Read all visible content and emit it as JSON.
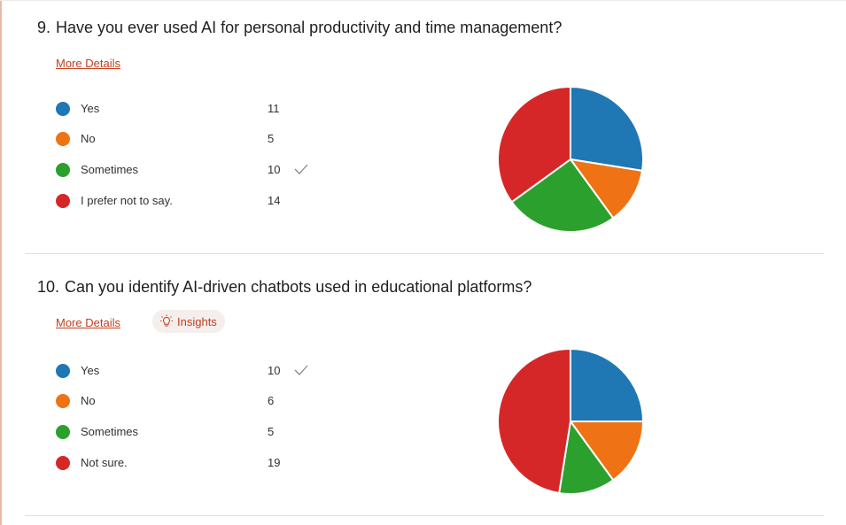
{
  "colors": {
    "series": [
      "#1f77b4",
      "#ef7314",
      "#2ca02c",
      "#d62728"
    ],
    "link": "#c43e1c"
  },
  "questions": [
    {
      "number": "9.",
      "title": "Have you ever used AI for personal productivity and time management?",
      "more_details": "More Details",
      "show_insights": false,
      "options": [
        {
          "label": "Yes",
          "count": "11",
          "checked": false
        },
        {
          "label": "No",
          "count": "5",
          "checked": false
        },
        {
          "label": "Sometimes",
          "count": "10",
          "checked": true
        },
        {
          "label": "I prefer not to say.",
          "count": "14",
          "checked": false
        }
      ],
      "chart_data": {
        "type": "pie",
        "categories": [
          "Yes",
          "No",
          "Sometimes",
          "I prefer not to say."
        ],
        "values": [
          11,
          5,
          10,
          14
        ]
      }
    },
    {
      "number": "10.",
      "title": "Can you identify AI-driven chatbots used in educational platforms?",
      "more_details": "More Details",
      "show_insights": true,
      "insights_label": "Insights",
      "insights_icon": "lightbulb-icon",
      "options": [
        {
          "label": "Yes",
          "count": "10",
          "checked": true
        },
        {
          "label": "No",
          "count": "6",
          "checked": false
        },
        {
          "label": "Sometimes",
          "count": "5",
          "checked": false
        },
        {
          "label": "Not sure.",
          "count": "19",
          "checked": false
        }
      ],
      "chart_data": {
        "type": "pie",
        "categories": [
          "Yes",
          "No",
          "Sometimes",
          "Not sure."
        ],
        "values": [
          10,
          6,
          5,
          19
        ]
      }
    }
  ]
}
